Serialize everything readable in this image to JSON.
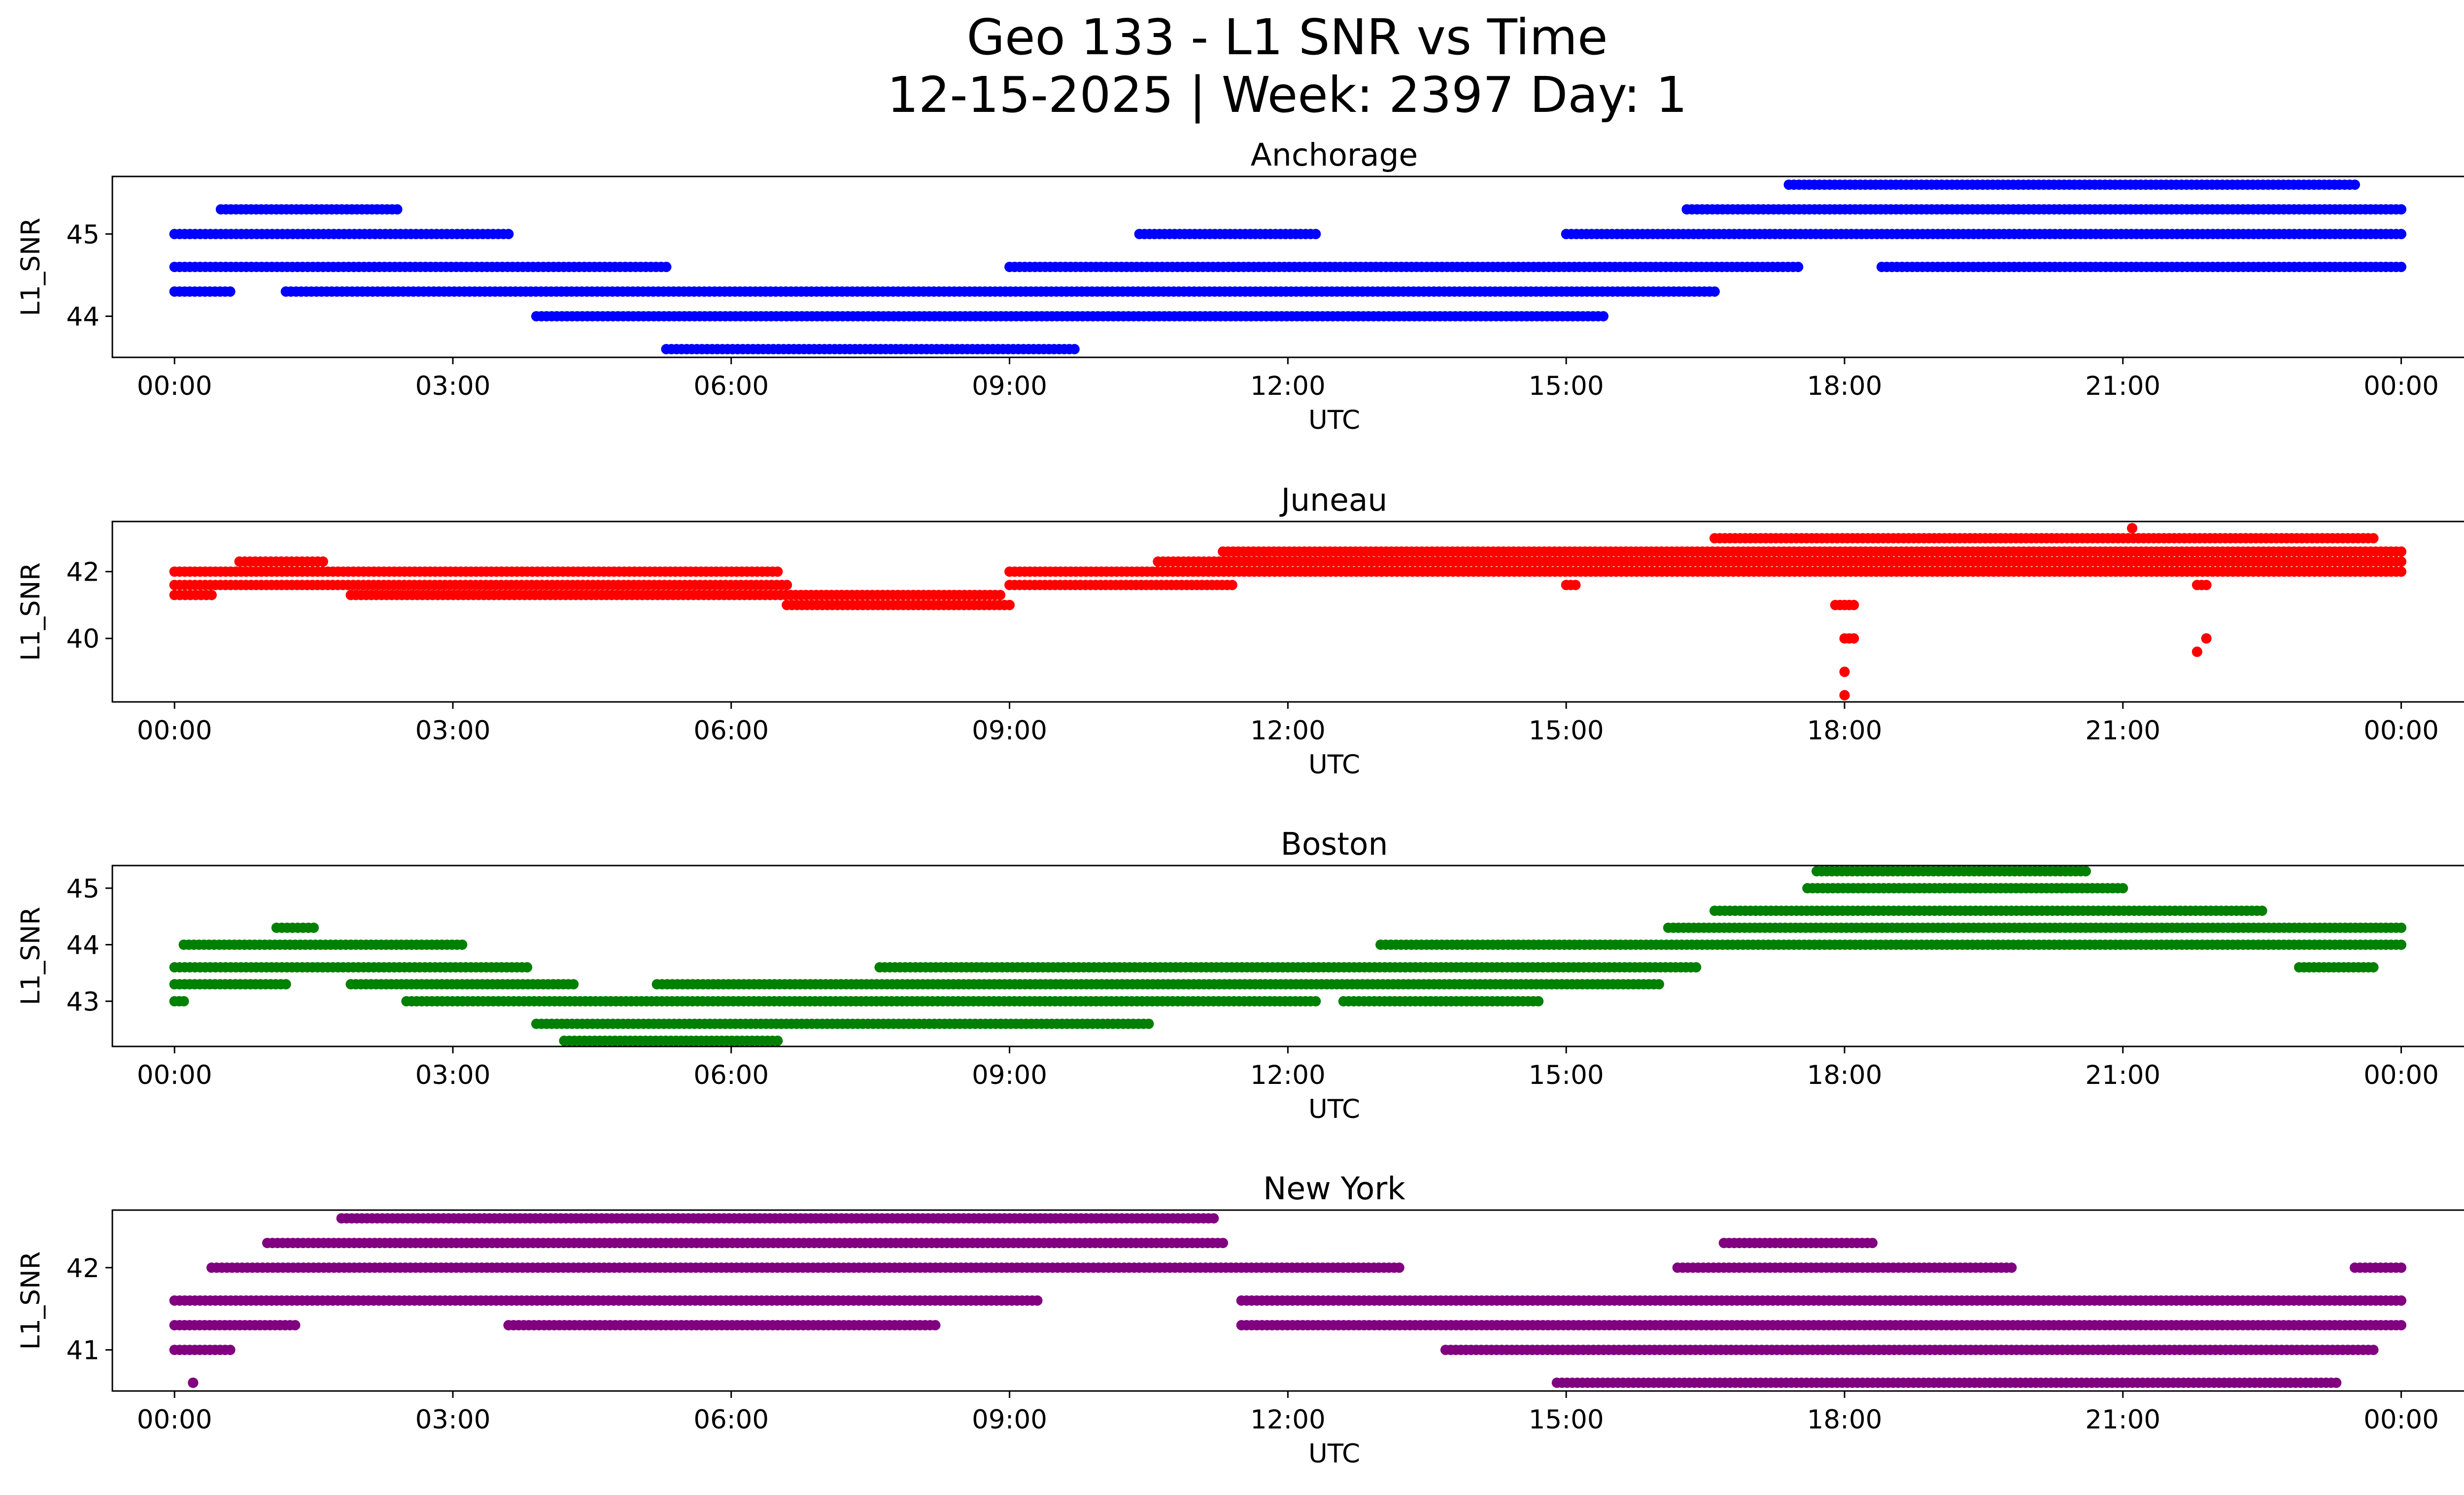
{
  "figure": {
    "title_line1": "Geo 133 - L1 SNR vs Time",
    "title_line2": "12-15-2025 | Week: 2397 Day: 1"
  },
  "chart_data": [
    {
      "type": "scatter",
      "title": "Anchorage",
      "xlabel": "UTC",
      "ylabel": "L1_SNR",
      "color": "#0000ff",
      "xlim_hours": [
        -0.67,
        25.67
      ],
      "ylim": [
        43.5,
        45.7
      ],
      "yticks": [
        44,
        45
      ],
      "ytick_labels": [
        "44",
        "45"
      ],
      "xticks_hours": [
        0,
        3,
        6,
        9,
        12,
        15,
        18,
        21,
        24
      ],
      "xtick_labels": [
        "00:00",
        "03:00",
        "06:00",
        "09:00",
        "12:00",
        "15:00",
        "18:00",
        "21:00",
        "00:00"
      ],
      "series": [
        {
          "name": "L1_SNR",
          "points": [
            {
              "y": 44.3,
              "x0": 0.0,
              "x1": 0.6
            },
            {
              "y": 44.6,
              "x0": 0.0,
              "x1": 5.3
            },
            {
              "y": 45.0,
              "x0": 0.0,
              "x1": 3.6
            },
            {
              "y": 45.3,
              "x0": 0.5,
              "x1": 2.4
            },
            {
              "y": 44.3,
              "x0": 1.2,
              "x1": 16.6
            },
            {
              "y": 44.0,
              "x0": 3.9,
              "x1": 15.4
            },
            {
              "y": 43.6,
              "x0": 5.3,
              "x1": 9.7
            },
            {
              "y": 44.6,
              "x0": 9.0,
              "x1": 17.5
            },
            {
              "y": 45.0,
              "x0": 10.4,
              "x1": 12.3
            },
            {
              "y": 45.0,
              "x0": 15.0,
              "x1": 24.0
            },
            {
              "y": 45.3,
              "x0": 16.3,
              "x1": 24.0
            },
            {
              "y": 45.6,
              "x0": 17.4,
              "x1": 23.5
            },
            {
              "y": 44.6,
              "x0": 18.4,
              "x1": 24.0
            }
          ]
        }
      ]
    },
    {
      "type": "scatter",
      "title": "Juneau",
      "xlabel": "UTC",
      "ylabel": "L1_SNR",
      "color": "#ff0000",
      "xlim_hours": [
        -0.67,
        25.67
      ],
      "ylim": [
        38.1,
        43.5
      ],
      "yticks": [
        40,
        42
      ],
      "ytick_labels": [
        "40",
        "42"
      ],
      "xticks_hours": [
        0,
        3,
        6,
        9,
        12,
        15,
        18,
        21,
        24
      ],
      "xtick_labels": [
        "00:00",
        "03:00",
        "06:00",
        "09:00",
        "12:00",
        "15:00",
        "18:00",
        "21:00",
        "00:00"
      ],
      "series": [
        {
          "name": "L1_SNR",
          "points": [
            {
              "y": 41.3,
              "x0": 0.0,
              "x1": 0.4
            },
            {
              "y": 41.6,
              "x0": 0.0,
              "x1": 6.6
            },
            {
              "y": 42.0,
              "x0": 0.0,
              "x1": 6.5
            },
            {
              "y": 42.3,
              "x0": 0.7,
              "x1": 1.6
            },
            {
              "y": 41.3,
              "x0": 1.9,
              "x1": 8.9
            },
            {
              "y": 41.0,
              "x0": 6.6,
              "x1": 9.0
            },
            {
              "y": 41.6,
              "x0": 9.0,
              "x1": 11.4
            },
            {
              "y": 42.0,
              "x0": 9.0,
              "x1": 24.0
            },
            {
              "y": 42.3,
              "x0": 10.6,
              "x1": 24.0
            },
            {
              "y": 42.6,
              "x0": 11.3,
              "x1": 24.0
            },
            {
              "y": 43.0,
              "x0": 16.6,
              "x1": 23.7
            },
            {
              "y": 43.3,
              "x0": 21.1,
              "x1": 21.1
            },
            {
              "y": 41.6,
              "x0": 15.0,
              "x1": 15.1
            },
            {
              "y": 41.0,
              "x0": 17.9,
              "x1": 18.1
            },
            {
              "y": 40.0,
              "x0": 18.0,
              "x1": 18.1
            },
            {
              "y": 39.0,
              "x0": 18.0,
              "x1": 18.0
            },
            {
              "y": 38.3,
              "x0": 18.0,
              "x1": 18.0
            },
            {
              "y": 39.6,
              "x0": 21.8,
              "x1": 21.8
            },
            {
              "y": 40.0,
              "x0": 21.9,
              "x1": 21.9
            },
            {
              "y": 41.6,
              "x0": 21.8,
              "x1": 21.9
            }
          ]
        }
      ]
    },
    {
      "type": "scatter",
      "title": "Boston",
      "xlabel": "UTC",
      "ylabel": "L1_SNR",
      "color": "#008000",
      "xlim_hours": [
        -0.67,
        25.67
      ],
      "ylim": [
        42.2,
        45.4
      ],
      "yticks": [
        43,
        44,
        45
      ],
      "ytick_labels": [
        "43",
        "44",
        "45"
      ],
      "xticks_hours": [
        0,
        3,
        6,
        9,
        12,
        15,
        18,
        21,
        24
      ],
      "xtick_labels": [
        "00:00",
        "03:00",
        "06:00",
        "09:00",
        "12:00",
        "15:00",
        "18:00",
        "21:00",
        "00:00"
      ],
      "series": [
        {
          "name": "L1_SNR",
          "points": [
            {
              "y": 43.0,
              "x0": 0.0,
              "x1": 0.1
            },
            {
              "y": 43.3,
              "x0": 0.0,
              "x1": 1.2
            },
            {
              "y": 43.6,
              "x0": 0.0,
              "x1": 3.8
            },
            {
              "y": 44.0,
              "x0": 0.1,
              "x1": 3.1
            },
            {
              "y": 44.3,
              "x0": 1.1,
              "x1": 1.5
            },
            {
              "y": 43.3,
              "x0": 1.9,
              "x1": 4.3
            },
            {
              "y": 43.0,
              "x0": 2.5,
              "x1": 12.3
            },
            {
              "y": 42.6,
              "x0": 3.9,
              "x1": 10.5
            },
            {
              "y": 42.3,
              "x0": 4.2,
              "x1": 6.5
            },
            {
              "y": 43.3,
              "x0": 5.2,
              "x1": 16.0
            },
            {
              "y": 43.6,
              "x0": 7.6,
              "x1": 16.4
            },
            {
              "y": 43.0,
              "x0": 12.6,
              "x1": 14.7
            },
            {
              "y": 44.0,
              "x0": 13.0,
              "x1": 24.0
            },
            {
              "y": 44.3,
              "x0": 16.1,
              "x1": 24.0
            },
            {
              "y": 44.6,
              "x0": 16.6,
              "x1": 22.5
            },
            {
              "y": 45.0,
              "x0": 17.6,
              "x1": 21.0
            },
            {
              "y": 45.3,
              "x0": 17.7,
              "x1": 20.6
            },
            {
              "y": 43.6,
              "x0": 22.9,
              "x1": 23.7
            }
          ]
        }
      ]
    },
    {
      "type": "scatter",
      "title": "New York",
      "xlabel": "UTC",
      "ylabel": "L1_SNR",
      "color": "#800080",
      "xlim_hours": [
        -0.67,
        25.67
      ],
      "ylim": [
        40.5,
        42.7
      ],
      "yticks": [
        41,
        42
      ],
      "ytick_labels": [
        "41",
        "42"
      ],
      "xticks_hours": [
        0,
        3,
        6,
        9,
        12,
        15,
        18,
        21,
        24
      ],
      "xtick_labels": [
        "00:00",
        "03:00",
        "06:00",
        "09:00",
        "12:00",
        "15:00",
        "18:00",
        "21:00",
        "00:00"
      ],
      "series": [
        {
          "name": "L1_SNR",
          "points": [
            {
              "y": 40.6,
              "x0": 0.2,
              "x1": 0.2
            },
            {
              "y": 41.0,
              "x0": 0.0,
              "x1": 0.6
            },
            {
              "y": 41.3,
              "x0": 0.0,
              "x1": 1.3
            },
            {
              "y": 41.6,
              "x0": 0.0,
              "x1": 9.3
            },
            {
              "y": 42.0,
              "x0": 0.4,
              "x1": 13.2
            },
            {
              "y": 42.3,
              "x0": 1.0,
              "x1": 11.3
            },
            {
              "y": 42.6,
              "x0": 1.8,
              "x1": 11.2
            },
            {
              "y": 41.3,
              "x0": 3.6,
              "x1": 8.2
            },
            {
              "y": 41.6,
              "x0": 11.5,
              "x1": 24.0
            },
            {
              "y": 41.3,
              "x0": 11.5,
              "x1": 24.0
            },
            {
              "y": 41.0,
              "x0": 13.7,
              "x1": 23.7
            },
            {
              "y": 40.6,
              "x0": 14.9,
              "x1": 23.3
            },
            {
              "y": 42.0,
              "x0": 16.2,
              "x1": 19.8
            },
            {
              "y": 42.3,
              "x0": 16.7,
              "x1": 18.3
            },
            {
              "y": 42.0,
              "x0": 23.5,
              "x1": 24.0
            }
          ]
        }
      ]
    }
  ]
}
